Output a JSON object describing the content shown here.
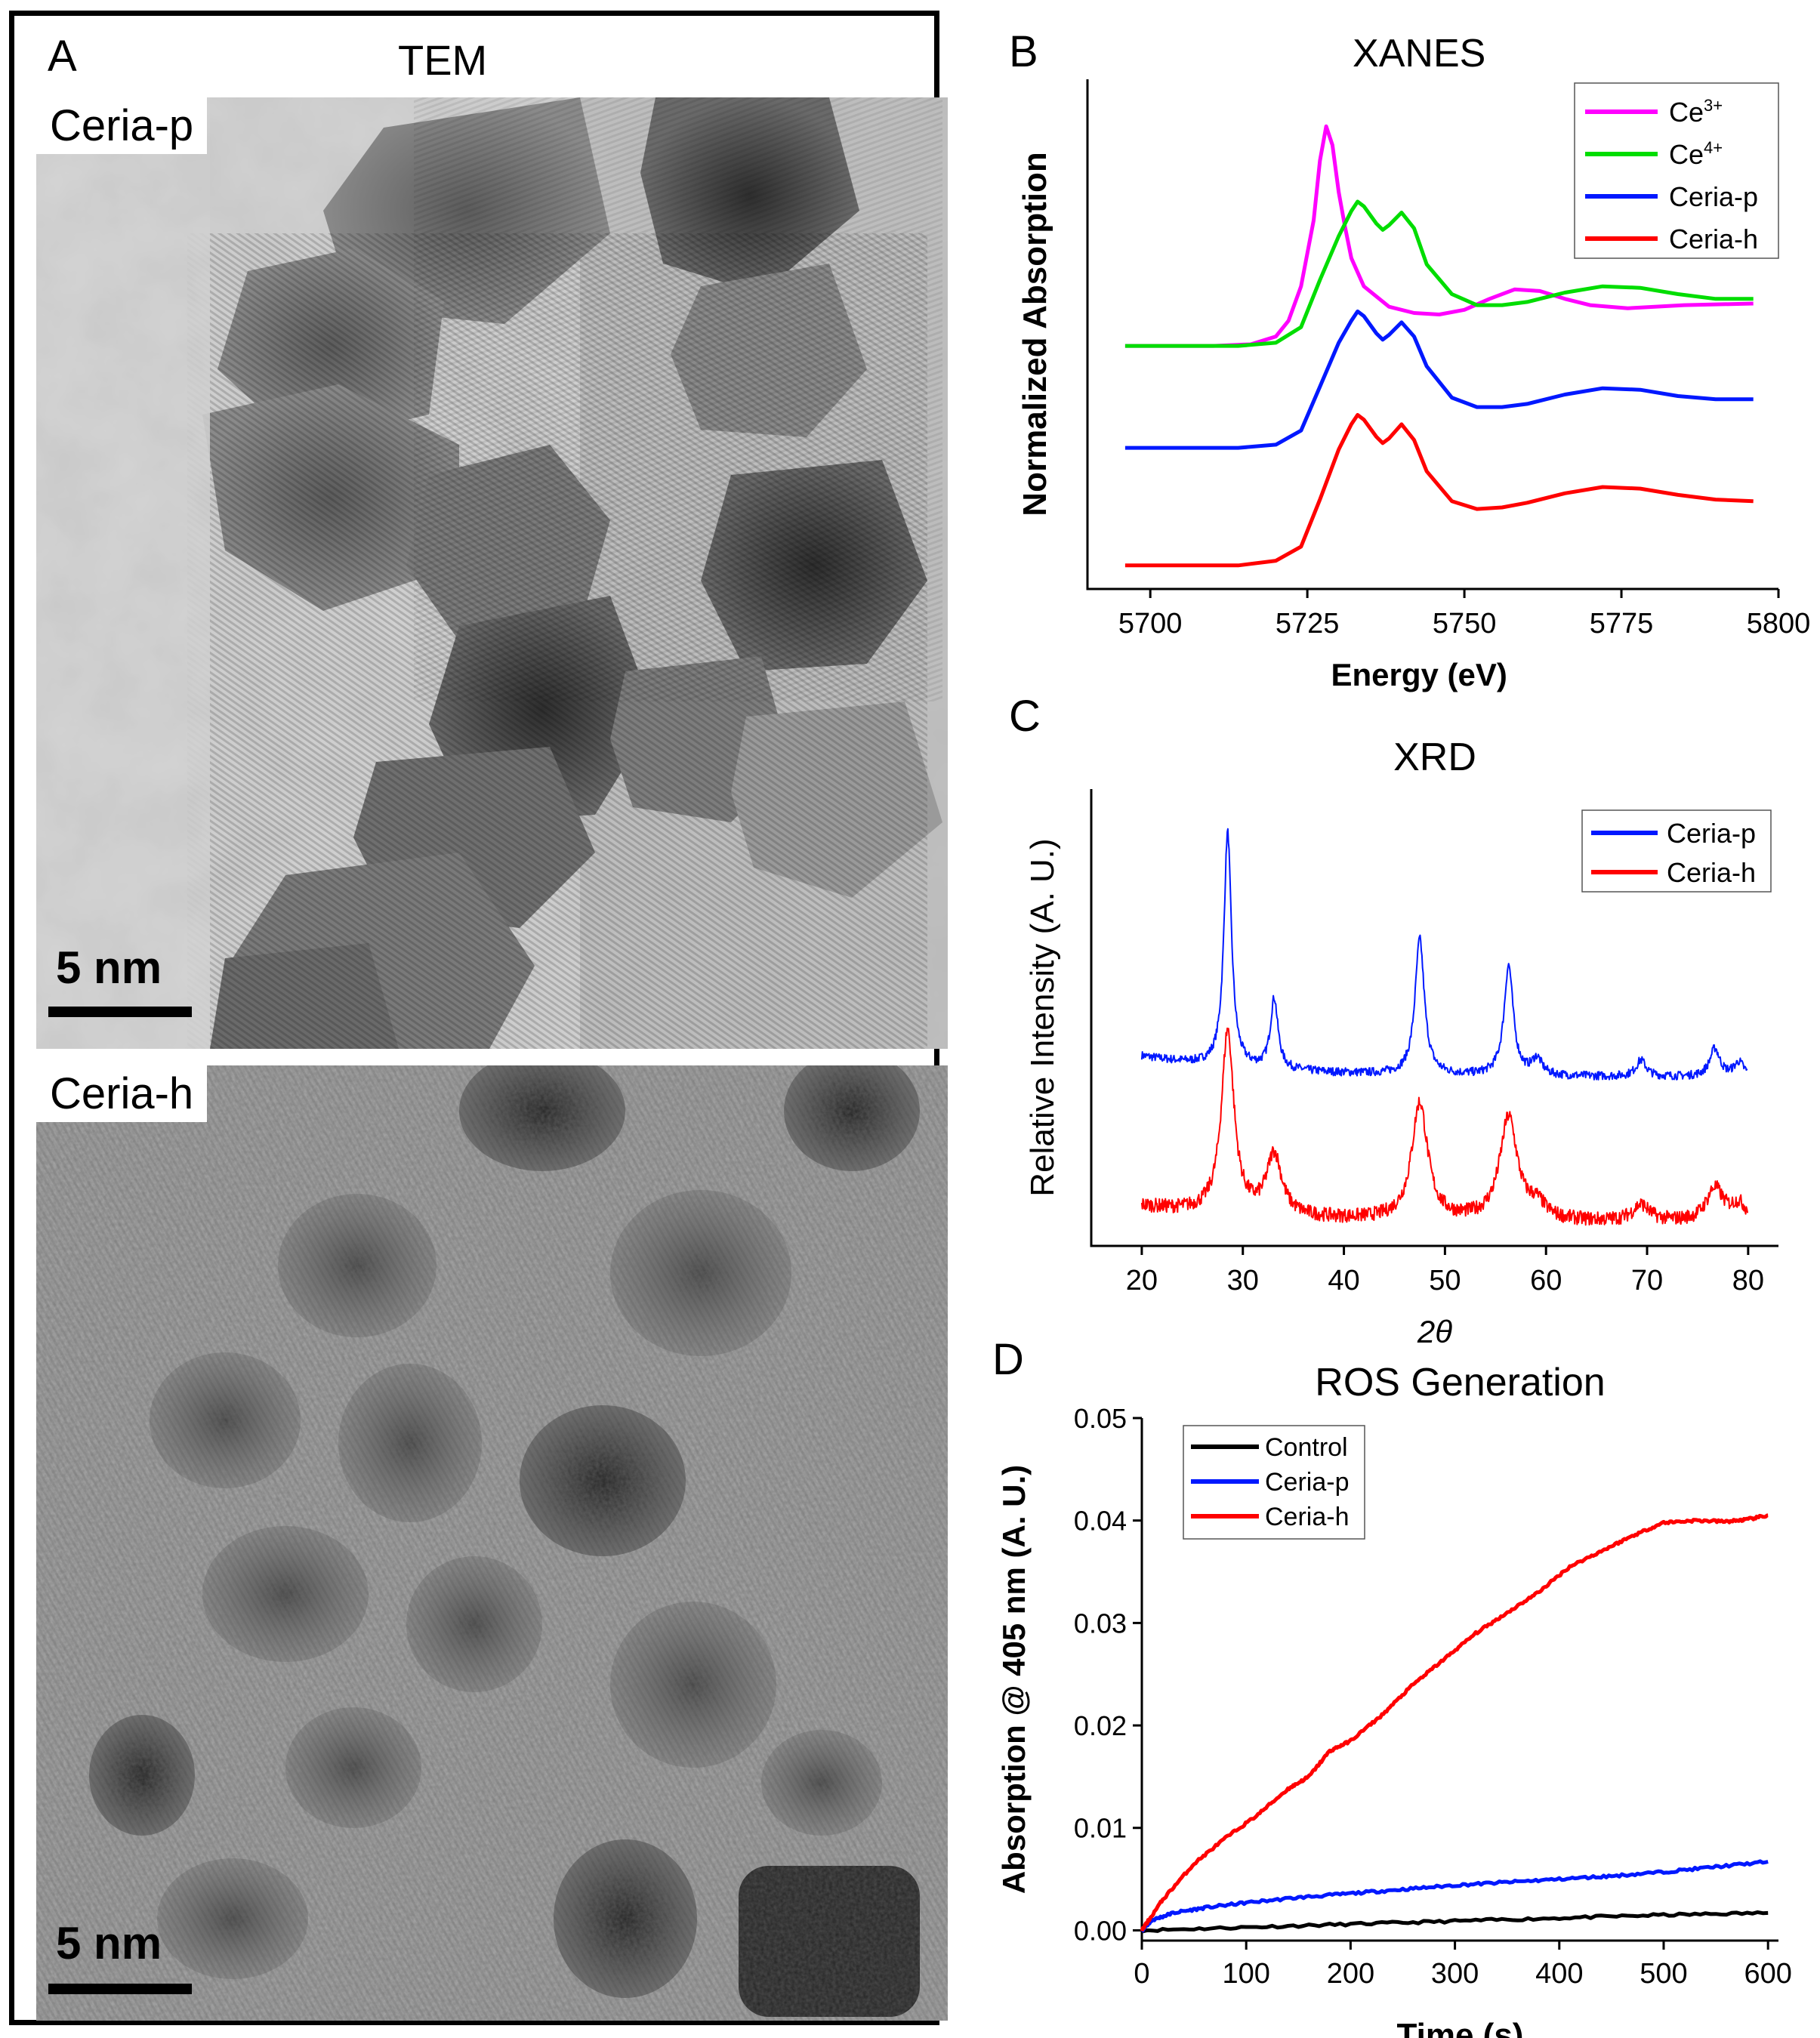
{
  "panel_a": {
    "letter": "A",
    "title": "TEM",
    "top_label": "Ceria-p",
    "bottom_label": "Ceria-h",
    "scalebar_top": "5 nm",
    "scalebar_bottom": "5 nm"
  },
  "chart_data": [
    {
      "id": "B",
      "type": "line",
      "letter": "B",
      "title": "XANES",
      "xlabel": "Energy (eV)",
      "ylabel": "Normalized Absorption",
      "xlim": [
        5690,
        5800
      ],
      "xticks": [
        5700,
        5725,
        5750,
        5775,
        5800
      ],
      "y_ticks_shown": false,
      "legend_position": "top-right",
      "series": [
        {
          "name": "Ce3+",
          "label_base": "Ce",
          "label_sup": "3+",
          "color": "#ff00ff",
          "x": [
            5696,
            5710,
            5716,
            5720,
            5722,
            5724,
            5726,
            5727,
            5728,
            5729,
            5730,
            5731,
            5732,
            5734,
            5738,
            5742,
            5746,
            5750,
            5754,
            5758,
            5762,
            5766,
            5770,
            5776,
            5785,
            5796
          ],
          "y": [
            0.1,
            0.1,
            0.11,
            0.16,
            0.26,
            0.48,
            0.9,
            1.28,
            1.5,
            1.38,
            1.08,
            0.86,
            0.66,
            0.48,
            0.35,
            0.31,
            0.3,
            0.33,
            0.4,
            0.46,
            0.45,
            0.4,
            0.36,
            0.34,
            0.36,
            0.37
          ]
        },
        {
          "name": "Ce4+",
          "label_base": "Ce",
          "label_sup": "4+",
          "color": "#00dd00",
          "x": [
            5696,
            5714,
            5720,
            5724,
            5727,
            5730,
            5732,
            5733,
            5734,
            5736,
            5737,
            5738,
            5740,
            5742,
            5744,
            5748,
            5752,
            5756,
            5760,
            5766,
            5772,
            5778,
            5784,
            5790,
            5796
          ],
          "y": [
            0.1,
            0.1,
            0.12,
            0.22,
            0.52,
            0.8,
            0.96,
            1.02,
            0.99,
            0.88,
            0.84,
            0.87,
            0.95,
            0.85,
            0.62,
            0.43,
            0.36,
            0.36,
            0.38,
            0.44,
            0.48,
            0.47,
            0.43,
            0.4,
            0.4
          ]
        },
        {
          "name": "Ceria-p",
          "label_base": "Ceria-p",
          "label_sup": "",
          "color": "#0018ff",
          "x": [
            5696,
            5714,
            5720,
            5724,
            5727,
            5730,
            5732,
            5733,
            5734,
            5736,
            5737,
            5738,
            5740,
            5742,
            5744,
            5748,
            5752,
            5756,
            5760,
            5766,
            5772,
            5778,
            5784,
            5790,
            5796
          ],
          "y": [
            -0.55,
            -0.55,
            -0.53,
            -0.44,
            -0.16,
            0.12,
            0.26,
            0.32,
            0.29,
            0.18,
            0.14,
            0.17,
            0.25,
            0.16,
            -0.03,
            -0.23,
            -0.29,
            -0.29,
            -0.27,
            -0.21,
            -0.17,
            -0.18,
            -0.22,
            -0.24,
            -0.24
          ]
        },
        {
          "name": "Ceria-h",
          "label_base": "Ceria-h",
          "label_sup": "",
          "color": "#ff0000",
          "x": [
            5696,
            5714,
            5720,
            5724,
            5727,
            5730,
            5732,
            5733,
            5734,
            5736,
            5737,
            5738,
            5740,
            5742,
            5744,
            5748,
            5752,
            5756,
            5760,
            5766,
            5772,
            5778,
            5784,
            5790,
            5796
          ],
          "y": [
            -1.3,
            -1.3,
            -1.27,
            -1.18,
            -0.88,
            -0.56,
            -0.4,
            -0.34,
            -0.37,
            -0.48,
            -0.52,
            -0.49,
            -0.4,
            -0.5,
            -0.7,
            -0.89,
            -0.94,
            -0.93,
            -0.9,
            -0.84,
            -0.8,
            -0.81,
            -0.85,
            -0.88,
            -0.89
          ]
        }
      ]
    },
    {
      "id": "C",
      "type": "line",
      "letter": "C",
      "title": "XRD",
      "xlabel": "2θ",
      "ylabel": "Relative Intensity (A. U.)",
      "xlim": [
        15,
        83
      ],
      "xticks": [
        20,
        30,
        40,
        50,
        60,
        70,
        80
      ],
      "y_ticks_shown": false,
      "legend_position": "top-right",
      "series": [
        {
          "name": "Ceria-p",
          "color": "#0018ff",
          "offset": 0.62,
          "peaks": [
            [
              28.5,
              1.0,
              0.45
            ],
            [
              33.1,
              0.3,
              0.45
            ],
            [
              47.5,
              0.58,
              0.55
            ],
            [
              56.3,
              0.47,
              0.55
            ],
            [
              59.1,
              0.07,
              0.6
            ],
            [
              69.4,
              0.07,
              0.6
            ],
            [
              76.7,
              0.12,
              0.6
            ],
            [
              79.1,
              0.06,
              0.6
            ]
          ],
          "noise": 0.018,
          "tail": 0.09
        },
        {
          "name": "Ceria-h",
          "color": "#ff0000",
          "offset": 0.0,
          "peaks": [
            [
              28.5,
              0.78,
              0.75
            ],
            [
              33.1,
              0.26,
              0.9
            ],
            [
              47.5,
              0.5,
              0.95
            ],
            [
              56.3,
              0.44,
              1.05
            ],
            [
              59.1,
              0.06,
              1.0
            ],
            [
              69.4,
              0.07,
              1.0
            ],
            [
              76.7,
              0.14,
              1.0
            ],
            [
              79.1,
              0.07,
              1.0
            ]
          ],
          "noise": 0.03,
          "tail": 0.07
        }
      ]
    },
    {
      "id": "D",
      "type": "line",
      "letter": "D",
      "title": "ROS Generation",
      "xlabel": "Time (s)",
      "ylabel": "Absorption @ 405 nm (A. U.)",
      "xlim": [
        0,
        610
      ],
      "ylim": [
        -0.001,
        0.05
      ],
      "xticks": [
        0,
        100,
        200,
        300,
        400,
        500,
        600
      ],
      "yticks": [
        0.0,
        0.01,
        0.02,
        0.03,
        0.04,
        0.05
      ],
      "ytick_labels": [
        "0.00",
        "0.01",
        "0.02",
        "0.03",
        "0.04",
        "0.05"
      ],
      "legend_position": "top-left",
      "series": [
        {
          "name": "Control",
          "color": "#000000",
          "x": [
            0,
            100,
            200,
            300,
            400,
            500,
            600
          ],
          "y": [
            0.0,
            0.0003,
            0.0006,
            0.0009,
            0.0012,
            0.0015,
            0.0017
          ]
        },
        {
          "name": "Ceria-p",
          "color": "#0018ff",
          "x": [
            0,
            10,
            30,
            60,
            100,
            150,
            200,
            250,
            300,
            350,
            400,
            450,
            500,
            550,
            600
          ],
          "y": [
            0.0,
            0.001,
            0.0017,
            0.0022,
            0.0027,
            0.0032,
            0.0036,
            0.004,
            0.0044,
            0.0047,
            0.005,
            0.0053,
            0.0057,
            0.0062,
            0.0067
          ]
        },
        {
          "name": "Ceria-h",
          "color": "#ff0000",
          "x": [
            0,
            20,
            50,
            80,
            110,
            140,
            160,
            180,
            200,
            230,
            260,
            290,
            320,
            350,
            380,
            410,
            440,
            470,
            500,
            530,
            560,
            580,
            600
          ],
          "y": [
            0.0,
            0.003,
            0.0065,
            0.009,
            0.0112,
            0.0138,
            0.015,
            0.0175,
            0.0185,
            0.021,
            0.024,
            0.0265,
            0.029,
            0.031,
            0.033,
            0.0355,
            0.037,
            0.0385,
            0.0398,
            0.04,
            0.0399,
            0.0401,
            0.0405
          ]
        }
      ]
    }
  ]
}
